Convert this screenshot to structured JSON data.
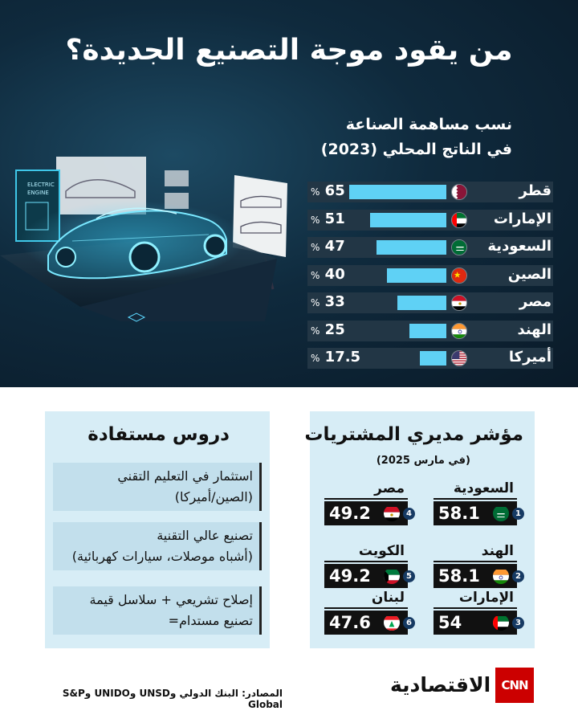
{
  "title": "من يقود موجة التصنيع الجديدة؟",
  "chart_data": {
    "type": "bar",
    "title_line1": "نسب مساهمة الصناعة",
    "title_line2": "في الناتج المحلي (2023)",
    "categories": [
      "قطر",
      "الإمارات",
      "السعودية",
      "الصين",
      "مصر",
      "الهند",
      "أميركا"
    ],
    "values": [
      65,
      51,
      47,
      40,
      33,
      25,
      17.5
    ],
    "value_labels": [
      "65",
      "51",
      "47",
      "40",
      "33",
      "25",
      "17.5"
    ],
    "unit": "%",
    "xlim": [
      0,
      100
    ],
    "bar_color": "#5fd1f5"
  },
  "illustration": {
    "monitor_text_line1": "ELECTRIC",
    "monitor_text_line2": "ENGINE"
  },
  "pmi": {
    "title": "مؤشر مديري المشتريات",
    "subtitle": "(في مارس 2025)",
    "items": [
      {
        "rank": "1",
        "country": "السعودية",
        "value": "58.1",
        "flag": "sa"
      },
      {
        "rank": "2",
        "country": "الهند",
        "value": "58.1",
        "flag": "in"
      },
      {
        "rank": "3",
        "country": "الإمارات",
        "value": "54",
        "flag": "ae"
      },
      {
        "rank": "4",
        "country": "مصر",
        "value": "49.2",
        "flag": "eg"
      },
      {
        "rank": "5",
        "country": "الكويت",
        "value": "49.2",
        "flag": "kw"
      },
      {
        "rank": "6",
        "country": "لبنان",
        "value": "47.6",
        "flag": "lb"
      }
    ]
  },
  "lessons": {
    "title": "دروس مستفادة",
    "items": [
      {
        "line1": "استثمار في التعليم التقني",
        "line2": "(الصين/أميركا)"
      },
      {
        "line1": "تصنيع عالي التقنية",
        "line2": "(أشباه موصلات، سيارات كهربائية)"
      },
      {
        "line1": "إصلاح تشريعي + سلاسل قيمة",
        "line2": "تصنيع مستدام="
      }
    ]
  },
  "footer": {
    "sources": "المصادر: البنك الدولي وUNSD وUNIDO وS&P Global",
    "brand": "الاقتصادية",
    "logo": "CNN"
  },
  "colors": {
    "hero_bg": "#0f2a3d",
    "bar": "#5fd1f5",
    "panel_bg": "#d7edf6",
    "cnn_red": "#cc0000"
  }
}
